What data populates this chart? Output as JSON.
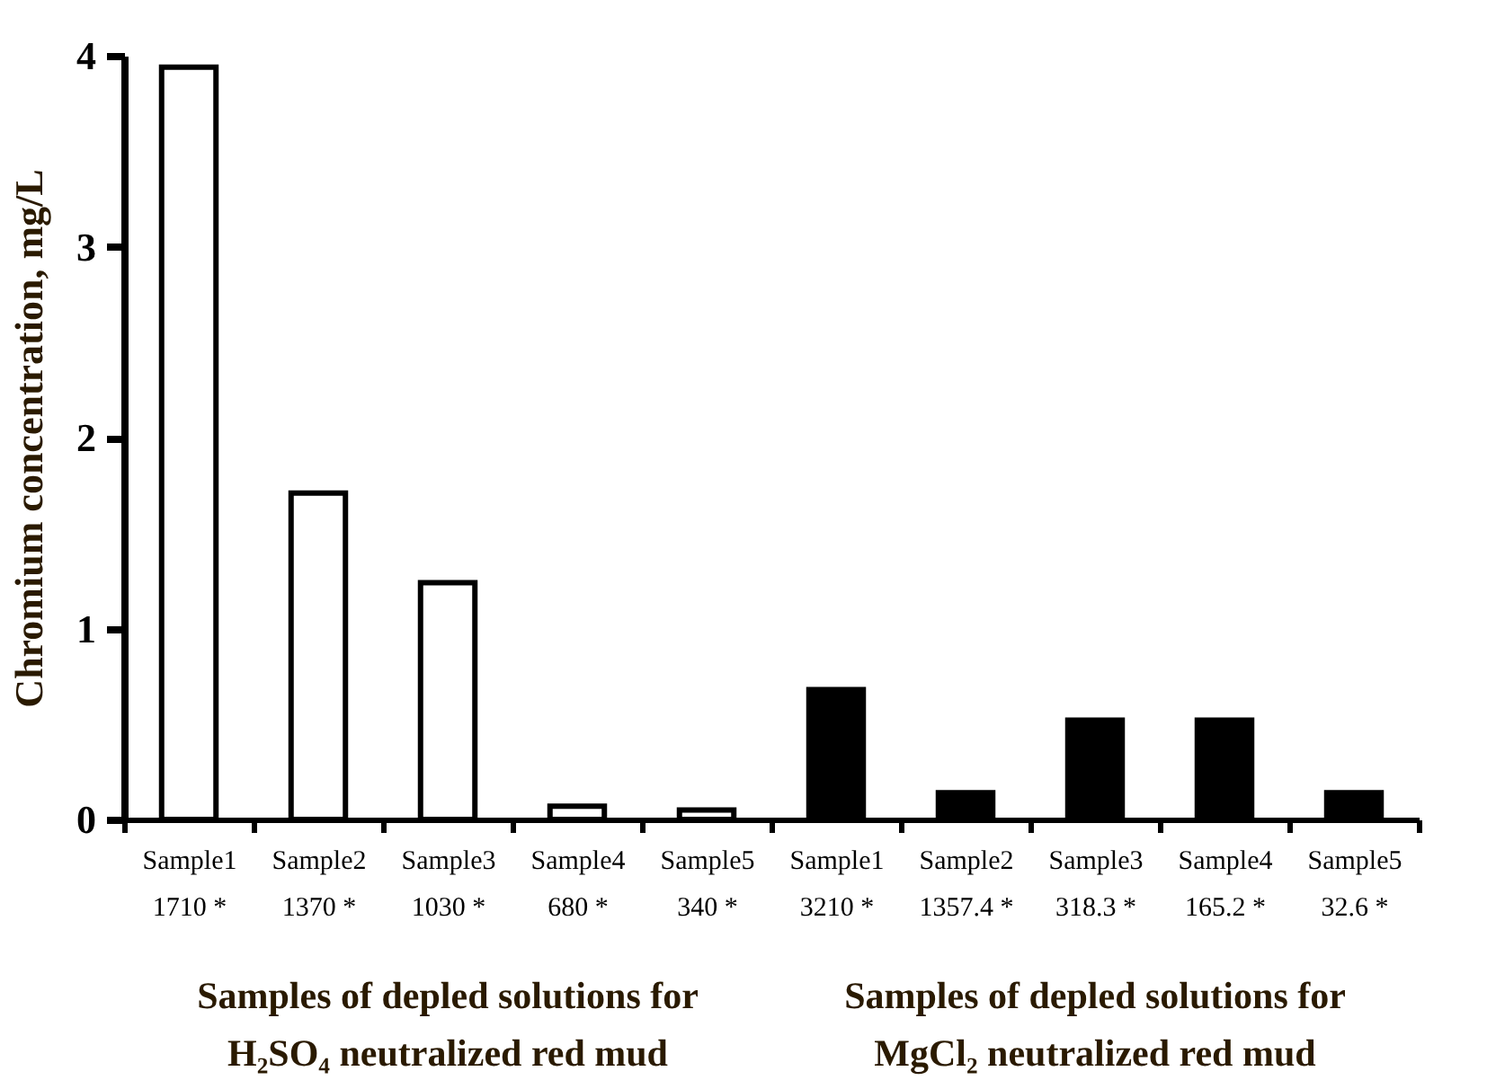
{
  "chart_data": {
    "type": "bar",
    "ylabel": "Chromium concentration, mg/L",
    "categories": [
      "Sample1\n1710 *",
      "Sample2\n1370 *",
      "Sample3\n1030 *",
      "Sample4\n680 *",
      "Sample5\n340 *",
      "Sample1\n3210 *",
      "Sample2\n1357.4 *",
      "Sample3\n318.3 *",
      "Sample4\n165.2 *",
      "Sample5\n32.6 *"
    ],
    "values": [
      3.94,
      1.71,
      1.24,
      0.07,
      0.05,
      0.68,
      0.14,
      0.52,
      0.52,
      0.14
    ],
    "colors": [
      "#ffffff",
      "#ffffff",
      "#ffffff",
      "#ffffff",
      "#ffffff",
      "#000000",
      "#000000",
      "#000000",
      "#000000",
      "#000000"
    ],
    "ylim": [
      0,
      4
    ],
    "yticks": [
      0,
      1,
      2,
      3,
      4
    ],
    "grid": false,
    "annotations": [
      "Samples of depled solutions for\nH₂SO₄ neutralized red mud",
      "Samples of depled solutions for\nMgCl₂ neutralized red mud"
    ]
  }
}
